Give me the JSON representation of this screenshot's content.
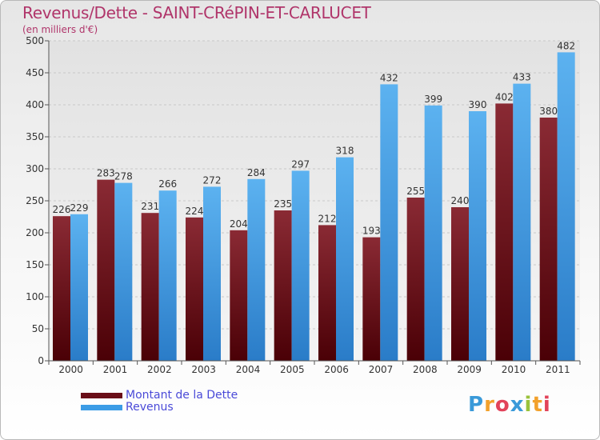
{
  "chart_data": {
    "type": "bar",
    "title": "Revenus/Dette - SAINT-CRéPIN-ET-CARLUCET",
    "subtitle": "(en milliers d'€)",
    "categories": [
      "2000",
      "2001",
      "2002",
      "2003",
      "2004",
      "2005",
      "2006",
      "2007",
      "2008",
      "2009",
      "2010",
      "2011"
    ],
    "series": [
      {
        "name": "Montant de la Dette",
        "color": "#7a1a24",
        "values": [
          226,
          283,
          231,
          224,
          204,
          235,
          212,
          193,
          255,
          240,
          402,
          380
        ]
      },
      {
        "name": "Revenus",
        "color": "#3b9ce6",
        "values": [
          229,
          278,
          266,
          272,
          284,
          297,
          318,
          432,
          399,
          390,
          433,
          482
        ]
      }
    ],
    "ylim": [
      0,
      500
    ],
    "yticks": [
      0,
      50,
      100,
      150,
      200,
      250,
      300,
      350,
      400,
      450,
      500
    ],
    "grid": true,
    "legend_position": "bottom-left"
  },
  "logo": {
    "text": "Proxiti"
  }
}
